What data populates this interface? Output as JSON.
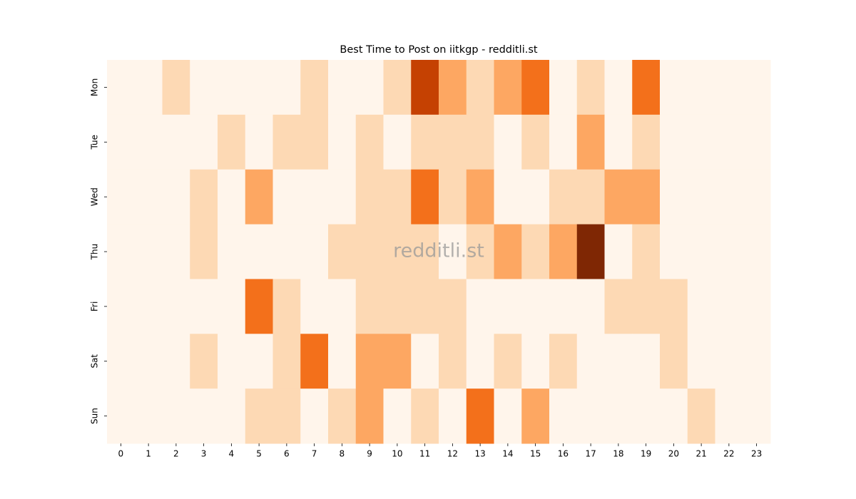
{
  "chart_data": {
    "type": "heatmap",
    "title": "Best Time to Post on iitkgp - redditli.st",
    "watermark": "redditli.st",
    "colormap": "Oranges",
    "x": [
      "0",
      "1",
      "2",
      "3",
      "4",
      "5",
      "6",
      "7",
      "8",
      "9",
      "10",
      "11",
      "12",
      "13",
      "14",
      "15",
      "16",
      "17",
      "18",
      "19",
      "20",
      "21",
      "22",
      "23"
    ],
    "y": [
      "Mon",
      "Tue",
      "Wed",
      "Thu",
      "Fri",
      "Sat",
      "Sun"
    ],
    "values": [
      [
        0,
        0,
        1,
        0,
        0,
        0,
        0,
        1,
        0,
        0,
        1,
        4,
        2,
        1,
        2,
        3,
        0,
        1,
        0,
        3,
        0,
        0,
        0,
        0
      ],
      [
        0,
        0,
        0,
        0,
        1,
        0,
        1,
        1,
        0,
        1,
        0,
        1,
        1,
        1,
        0,
        1,
        0,
        2,
        0,
        1,
        0,
        0,
        0,
        0
      ],
      [
        0,
        0,
        0,
        1,
        0,
        2,
        0,
        0,
        0,
        1,
        1,
        3,
        1,
        2,
        0,
        0,
        1,
        1,
        2,
        2,
        0,
        0,
        0,
        0
      ],
      [
        0,
        0,
        0,
        1,
        0,
        0,
        0,
        0,
        1,
        1,
        1,
        1,
        0,
        1,
        2,
        1,
        2,
        5,
        0,
        1,
        0,
        0,
        0,
        0
      ],
      [
        0,
        0,
        0,
        0,
        0,
        3,
        1,
        0,
        0,
        1,
        1,
        1,
        1,
        0,
        0,
        0,
        0,
        0,
        1,
        1,
        1,
        0,
        0,
        0
      ],
      [
        0,
        0,
        0,
        1,
        0,
        0,
        1,
        3,
        0,
        2,
        2,
        0,
        1,
        0,
        1,
        0,
        1,
        0,
        0,
        0,
        1,
        0,
        0,
        0
      ],
      [
        0,
        0,
        0,
        0,
        0,
        1,
        1,
        0,
        1,
        2,
        0,
        1,
        0,
        3,
        0,
        2,
        0,
        0,
        0,
        0,
        0,
        1,
        0,
        0
      ]
    ]
  }
}
